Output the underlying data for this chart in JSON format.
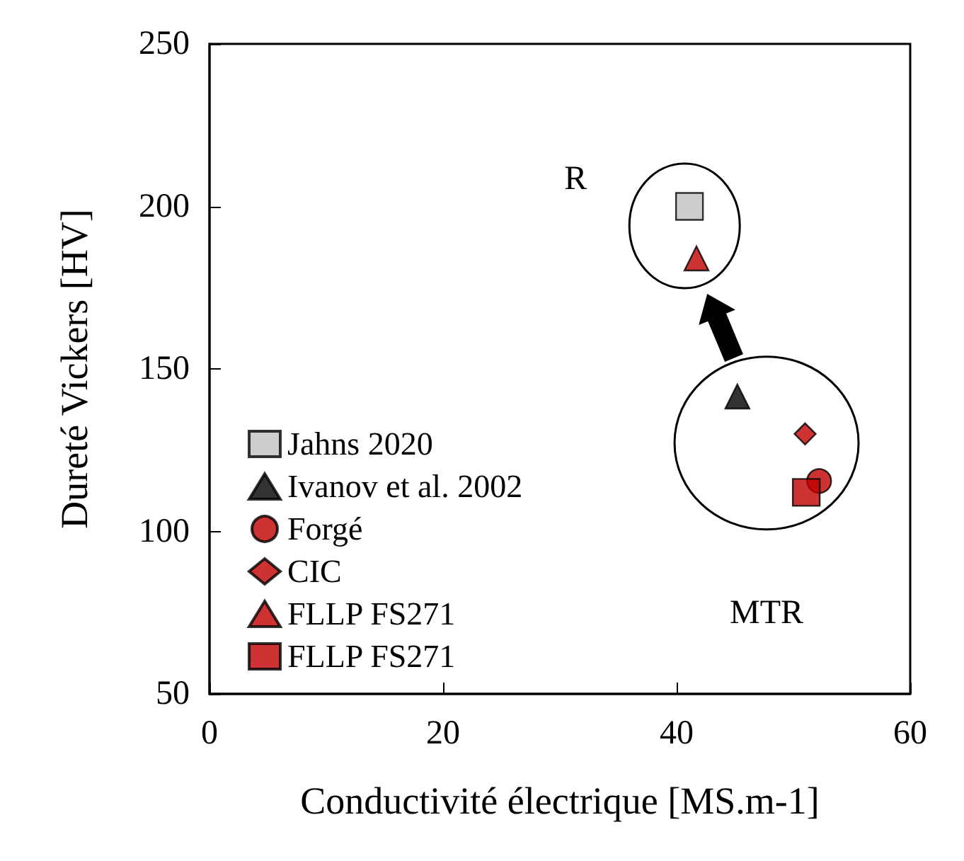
{
  "chart_data": {
    "type": "scatter",
    "xlabel": "Conductivité électrique [MS.m-1]",
    "ylabel": "Dureté Vickers [HV]",
    "xlim": [
      0,
      60
    ],
    "xticks": [
      0,
      20,
      40,
      60
    ],
    "ylim": [
      50,
      250
    ],
    "yticks": [
      50,
      100,
      150,
      200,
      250
    ],
    "grid": false,
    "legend": "bottom left",
    "annotations": [
      "R",
      "MTR"
    ],
    "series": [
      {
        "name": "Jahns 2020",
        "color": "#c0c0c0",
        "marker": "square",
        "x": [
          41.1
        ],
        "values": [
          200
        ]
      },
      {
        "name": "Ivanov et al. 2002",
        "color": "#000000",
        "marker": "triangle",
        "x": [
          45.2
        ],
        "values": [
          141.5
        ]
      },
      {
        "name": "Forgé",
        "color": "#c00000",
        "marker": "circle",
        "x": [
          52.2
        ],
        "values": [
          115.5
        ]
      },
      {
        "name": "CIC",
        "color": "#c00000",
        "marker": "diamond",
        "x": [
          51
        ],
        "values": [
          130
        ]
      },
      {
        "name": "FLLP FS271",
        "color": "#c00000",
        "marker": "triangle",
        "x": [
          41.7
        ],
        "values": [
          184
        ]
      },
      {
        "name": "FLLP FS271",
        "color": "#c00000",
        "marker": "square",
        "x": [
          51.1
        ],
        "values": [
          112
        ]
      }
    ]
  }
}
